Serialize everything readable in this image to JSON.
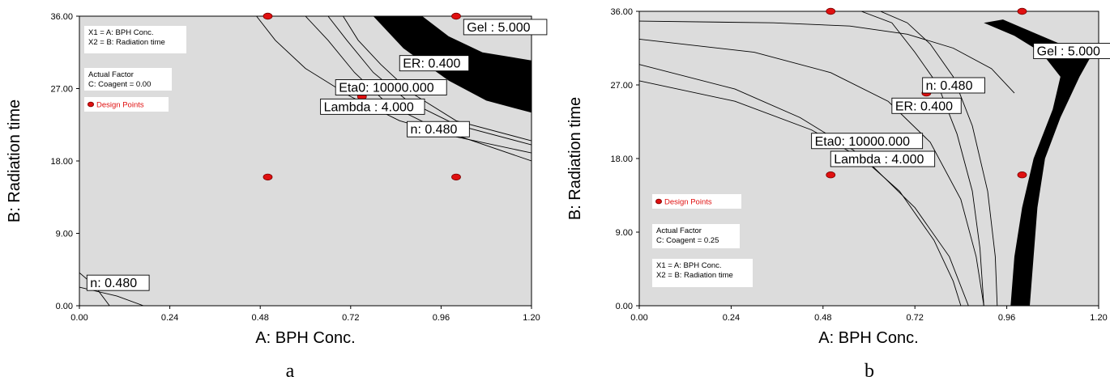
{
  "chart_data": [
    {
      "panel": "a",
      "type": "contour",
      "xlabel": "A: BPH Conc.",
      "ylabel": "B: Radiation time",
      "xlim": [
        0,
        1.2
      ],
      "ylim": [
        0,
        36
      ],
      "xticks": [
        "0.00",
        "0.24",
        "0.48",
        "0.72",
        "0.96",
        "1.20"
      ],
      "yticks": [
        "0.00",
        "9.00",
        "18.00",
        "27.00",
        "36.00"
      ],
      "grid": false,
      "legend_lines": [
        "X1 = A: BPH Conc.",
        "X2 = B: Radiation time",
        "Actual Factor",
        "C: Coagent = 0.00"
      ],
      "legend_dp": "Design Points",
      "design_points": [
        [
          0.5,
          36
        ],
        [
          1.0,
          36
        ],
        [
          0.75,
          26
        ],
        [
          0.5,
          16
        ],
        [
          1.0,
          16
        ]
      ],
      "contour_labels": [
        {
          "text": "Gel : 5.000",
          "x": 1.02,
          "y": 34.7
        },
        {
          "text": "ER: 0.400",
          "x": 0.85,
          "y": 30.2
        },
        {
          "text": "Eta0: 10000.000",
          "x": 0.68,
          "y": 27.2
        },
        {
          "text": "Lambda : 4.000",
          "x": 0.64,
          "y": 24.8
        },
        {
          "text": "n: 0.480",
          "x": 0.87,
          "y": 22.0
        },
        {
          "text": "n: 0.480",
          "x": 0.02,
          "y": 2.9
        }
      ],
      "shaded_region": "Gel ≥ 5.000 band (black) upper right",
      "contours": [
        {
          "name": "n",
          "points": [
            [
              0.47,
              36
            ],
            [
              0.52,
              33
            ],
            [
              0.6,
              29.5
            ],
            [
              0.72,
              26
            ],
            [
              0.85,
              23
            ],
            [
              1.0,
              21
            ],
            [
              1.2,
              19
            ]
          ]
        },
        {
          "name": "lambda",
          "points": [
            [
              0.6,
              36
            ],
            [
              0.66,
              33
            ],
            [
              0.73,
              29
            ],
            [
              0.82,
              25
            ],
            [
              0.95,
              22
            ],
            [
              1.2,
              18
            ]
          ]
        },
        {
          "name": "eta0",
          "points": [
            [
              0.66,
              36
            ],
            [
              0.71,
              33
            ],
            [
              0.78,
              29
            ],
            [
              0.87,
              25.5
            ],
            [
              1.0,
              22.5
            ],
            [
              1.2,
              20
            ]
          ]
        },
        {
          "name": "er",
          "points": [
            [
              0.7,
              36
            ],
            [
              0.74,
              33
            ],
            [
              0.8,
              30
            ],
            [
              0.88,
              26.5
            ],
            [
              1.0,
              23
            ],
            [
              1.2,
              20.5
            ]
          ]
        },
        {
          "name": "n-low",
          "points": [
            [
              0.0,
              4.1
            ],
            [
              0.04,
              2.5
            ],
            [
              0.08,
              0
            ]
          ]
        },
        {
          "name": "n-low2",
          "points": [
            [
              0.0,
              2.3
            ],
            [
              0.1,
              1.2
            ],
            [
              0.17,
              0
            ]
          ]
        }
      ],
      "gel_band": {
        "upper": [
          [
            0.91,
            36
          ],
          [
            0.98,
            33.5
          ],
          [
            1.07,
            31.5
          ],
          [
            1.2,
            30.5
          ]
        ],
        "lower": [
          [
            1.2,
            24
          ],
          [
            1.08,
            25.5
          ],
          [
            0.98,
            28
          ],
          [
            0.86,
            32
          ],
          [
            0.78,
            36
          ]
        ]
      }
    },
    {
      "panel": "b",
      "type": "contour",
      "xlabel": "A: BPH Conc.",
      "ylabel": "B: Radiation time",
      "xlim": [
        0,
        1.2
      ],
      "ylim": [
        0,
        36
      ],
      "xticks": [
        "0.00",
        "0.24",
        "0.48",
        "0.72",
        "0.96",
        "1.20"
      ],
      "yticks": [
        "0.00",
        "9.00",
        "18.00",
        "27.00",
        "36.00"
      ],
      "grid": false,
      "legend_lines": [
        "Actual Factor",
        "C: Coagent = 0.25",
        "X1 = A: BPH Conc.",
        "X2 = B: Radiation time"
      ],
      "legend_dp": "Design Points",
      "design_points": [
        [
          0.5,
          36
        ],
        [
          1.0,
          36
        ],
        [
          0.75,
          26
        ],
        [
          0.5,
          16
        ],
        [
          1.0,
          16
        ]
      ],
      "contour_labels": [
        {
          "text": "Gel : 5.000",
          "x": 1.03,
          "y": 31.2
        },
        {
          "text": "n: 0.480",
          "x": 0.74,
          "y": 27.0
        },
        {
          "text": "ER: 0.400",
          "x": 0.66,
          "y": 24.5
        },
        {
          "text": "Eta0: 10000.000",
          "x": 0.45,
          "y": 20.2
        },
        {
          "text": "Lambda : 4.000",
          "x": 0.5,
          "y": 18.0
        }
      ],
      "shaded_region": "Gel ≥ 5.000 band (black) right side",
      "contours": [
        {
          "name": "top-arc",
          "points": [
            [
              0.0,
              34.8
            ],
            [
              0.35,
              34.6
            ],
            [
              0.55,
              34.2
            ],
            [
              0.7,
              33.2
            ],
            [
              0.82,
              31.5
            ],
            [
              0.92,
              29
            ],
            [
              0.98,
              26
            ]
          ]
        },
        {
          "name": "outer",
          "points": [
            [
              0.0,
              32.6
            ],
            [
              0.3,
              31
            ],
            [
              0.5,
              28.5
            ],
            [
              0.65,
              25
            ],
            [
              0.76,
              20
            ],
            [
              0.84,
              13
            ],
            [
              0.88,
              6
            ],
            [
              0.9,
              0
            ]
          ]
        },
        {
          "name": "mid1",
          "points": [
            [
              0.0,
              29.5
            ],
            [
              0.25,
              26.5
            ],
            [
              0.42,
              23
            ],
            [
              0.56,
              19
            ],
            [
              0.68,
              14
            ],
            [
              0.77,
              8
            ],
            [
              0.82,
              3
            ],
            [
              0.84,
              0
            ]
          ]
        },
        {
          "name": "mid2",
          "points": [
            [
              0.0,
              27.5
            ],
            [
              0.25,
              25
            ],
            [
              0.45,
              21.5
            ],
            [
              0.6,
              17.5
            ],
            [
              0.72,
              12
            ],
            [
              0.81,
              6
            ],
            [
              0.86,
              0
            ]
          ]
        },
        {
          "name": "er-line",
          "points": [
            [
              0.63,
              36
            ],
            [
              0.7,
              34.6
            ],
            [
              0.76,
              32
            ],
            [
              0.82,
              28
            ],
            [
              0.87,
              22
            ],
            [
              0.91,
              14
            ],
            [
              0.93,
              6
            ],
            [
              0.935,
              0
            ]
          ]
        },
        {
          "name": "eta-line",
          "points": [
            [
              0.58,
              36
            ],
            [
              0.66,
              34.6
            ],
            [
              0.72,
              31
            ],
            [
              0.78,
              27
            ],
            [
              0.83,
              21
            ],
            [
              0.87,
              14
            ],
            [
              0.89,
              7
            ],
            [
              0.9,
              0
            ]
          ]
        }
      ],
      "gel_band": {
        "left": [
          [
            0.9,
            34.6
          ],
          [
            0.98,
            33
          ],
          [
            1.05,
            31
          ],
          [
            1.1,
            28
          ],
          [
            1.08,
            24
          ],
          [
            1.03,
            18
          ],
          [
            1.0,
            12
          ],
          [
            0.98,
            6
          ],
          [
            0.97,
            0
          ]
        ],
        "right": [
          [
            1.02,
            0
          ],
          [
            1.03,
            6
          ],
          [
            1.04,
            12
          ],
          [
            1.06,
            18
          ],
          [
            1.1,
            23
          ],
          [
            1.15,
            28
          ],
          [
            1.18,
            30.5
          ],
          [
            1.1,
            32
          ],
          [
            1.0,
            34
          ],
          [
            0.95,
            35
          ]
        ]
      }
    }
  ],
  "panel_labels": {
    "a": "a",
    "b": "b"
  }
}
